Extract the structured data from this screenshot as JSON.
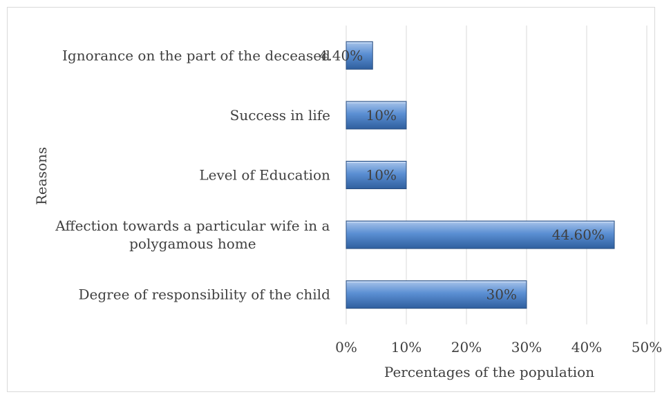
{
  "chart_data": {
    "type": "bar",
    "orientation": "horizontal",
    "categories": [
      "Degree of responsibility of the child",
      "Affection towards a particular wife in a polygamous home",
      "Level of Education",
      "Success in life",
      "Ignorance on the part of the deceased"
    ],
    "category_lines": [
      [
        "Degree of responsibility of the child"
      ],
      [
        "Affection towards a particular wife in a",
        "polygamous home"
      ],
      [
        "Level of Education"
      ],
      [
        "Success in life"
      ],
      [
        "Ignorance on the part of the deceased"
      ]
    ],
    "values": [
      30,
      44.6,
      10,
      10,
      4.4
    ],
    "data_labels": [
      "30%",
      "44.60%",
      "10%",
      "10%",
      "4.40%"
    ],
    "xlabel": "Percentages of the population",
    "ylabel": "Reasons",
    "xlim": [
      0,
      50
    ],
    "xticks": [
      0,
      10,
      20,
      30,
      40,
      50
    ],
    "xtick_labels": [
      "0%",
      "10%",
      "20%",
      "30%",
      "40%",
      "50%"
    ],
    "grid": true,
    "legend": "none",
    "bar_color": "#4f81bd"
  }
}
